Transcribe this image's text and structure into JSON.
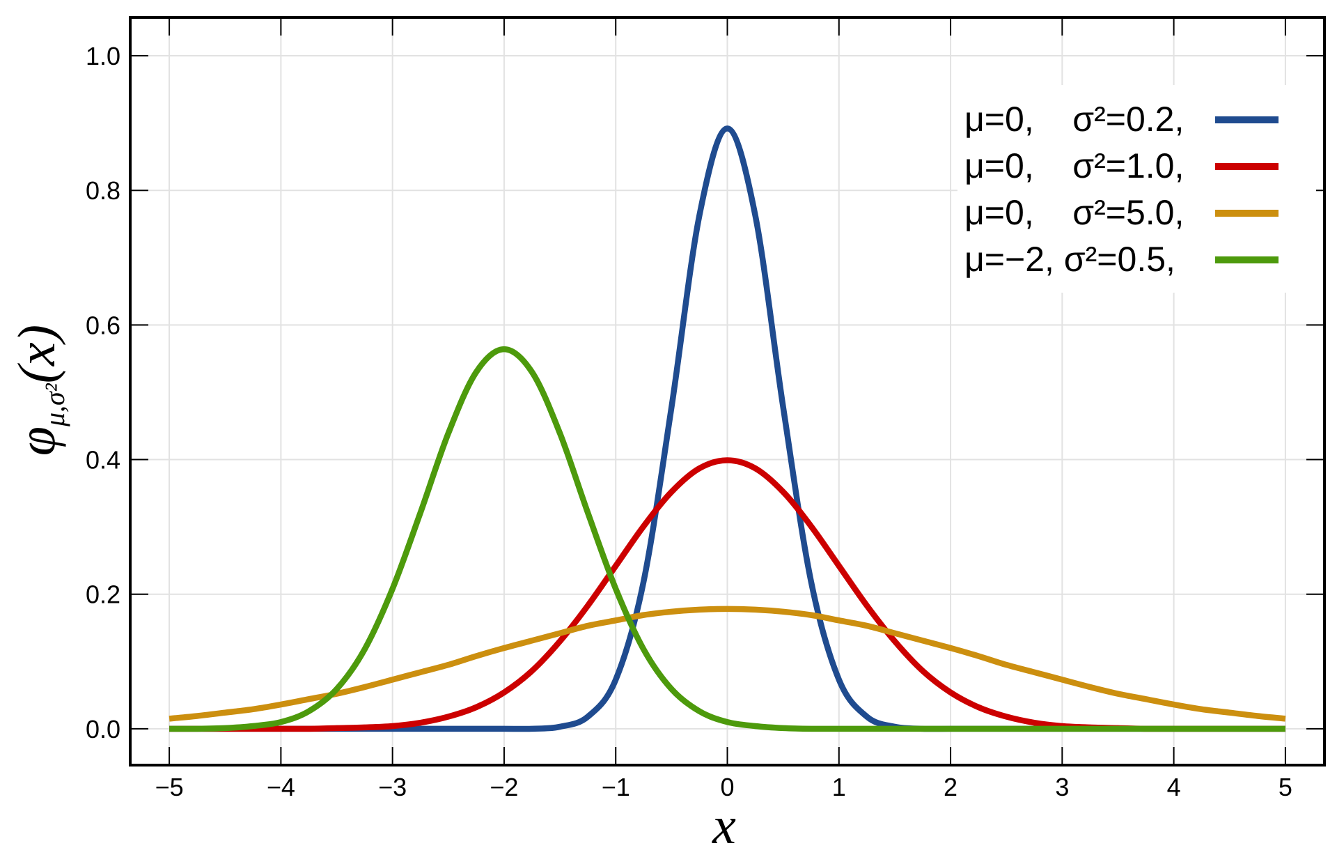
{
  "chart_data": {
    "type": "line",
    "ylabel": "φ",
    "ylabel_subscript": "μ,σ²",
    "ylabel_argument": "(x)",
    "xlabel": "x",
    "x": [
      -5,
      -4.75,
      -4.5,
      -4.25,
      -4,
      -3.75,
      -3.5,
      -3.25,
      -3,
      -2.75,
      -2.5,
      -2.25,
      -2,
      -1.75,
      -1.5,
      -1.25,
      -1,
      -0.75,
      -0.5,
      -0.25,
      0,
      0.25,
      0.5,
      0.75,
      1,
      1.25,
      1.5,
      1.75,
      2,
      2.25,
      2.5,
      2.75,
      3,
      3.25,
      3.5,
      3.75,
      4,
      4.25,
      4.5,
      4.75,
      5
    ],
    "series": [
      {
        "name": "μ=0,    σ²=0.2,",
        "color": "#1f4b8f",
        "values": [
          0,
          0,
          0,
          0,
          0,
          0,
          0,
          0,
          0,
          0,
          0,
          0,
          0,
          0,
          0.003,
          0.018,
          0.073,
          0.219,
          0.478,
          0.763,
          0.892,
          0.763,
          0.478,
          0.219,
          0.073,
          0.018,
          0.003,
          0,
          0,
          0,
          0,
          0,
          0,
          0,
          0,
          0,
          0,
          0,
          0,
          0,
          0
        ]
      },
      {
        "name": "μ=0,    σ²=1.0,",
        "color": "#cc0000",
        "values": [
          0,
          0,
          0,
          0,
          0,
          0,
          0.001,
          0.002,
          0.004,
          0.009,
          0.018,
          0.032,
          0.054,
          0.086,
          0.13,
          0.183,
          0.242,
          0.301,
          0.352,
          0.387,
          0.399,
          0.387,
          0.352,
          0.301,
          0.242,
          0.183,
          0.13,
          0.086,
          0.054,
          0.032,
          0.018,
          0.009,
          0.004,
          0.002,
          0.001,
          0,
          0,
          0,
          0,
          0,
          0
        ]
      },
      {
        "name": "μ=0,    σ²=5.0,",
        "color": "#cc8f0f",
        "values": [
          0.015,
          0.019,
          0.024,
          0.029,
          0.036,
          0.044,
          0.052,
          0.062,
          0.073,
          0.084,
          0.095,
          0.108,
          0.12,
          0.131,
          0.142,
          0.153,
          0.161,
          0.169,
          0.174,
          0.177,
          0.178,
          0.177,
          0.174,
          0.169,
          0.161,
          0.153,
          0.142,
          0.131,
          0.12,
          0.108,
          0.095,
          0.084,
          0.073,
          0.062,
          0.052,
          0.044,
          0.036,
          0.029,
          0.024,
          0.019,
          0.015
        ]
      },
      {
        "name": "μ=−2, σ²=0.5,",
        "color": "#4d9a0c",
        "values": [
          0,
          0,
          0.001,
          0.004,
          0.01,
          0.026,
          0.059,
          0.118,
          0.208,
          0.321,
          0.439,
          0.53,
          0.564,
          0.53,
          0.439,
          0.321,
          0.208,
          0.118,
          0.059,
          0.026,
          0.01,
          0.004,
          0.001,
          0,
          0,
          0,
          0,
          0,
          0,
          0,
          0,
          0,
          0,
          0,
          0,
          0,
          0,
          0,
          0,
          0,
          0
        ]
      }
    ],
    "xlim": [
      -5.35,
      5.35
    ],
    "ylim": [
      -0.054,
      1.057
    ],
    "xticks": [
      {
        "value": -5,
        "label": "−5"
      },
      {
        "value": -4,
        "label": "−4"
      },
      {
        "value": -3,
        "label": "−3"
      },
      {
        "value": -2,
        "label": "−2"
      },
      {
        "value": -1,
        "label": "−1"
      },
      0,
      1,
      2,
      3,
      4,
      5
    ],
    "yticks": [
      {
        "value": 0,
        "label": "0.0"
      },
      0.2,
      0.4,
      0.6,
      0.8,
      {
        "value": 1,
        "label": "1.0"
      }
    ],
    "grid": true,
    "legend": "upper right"
  }
}
